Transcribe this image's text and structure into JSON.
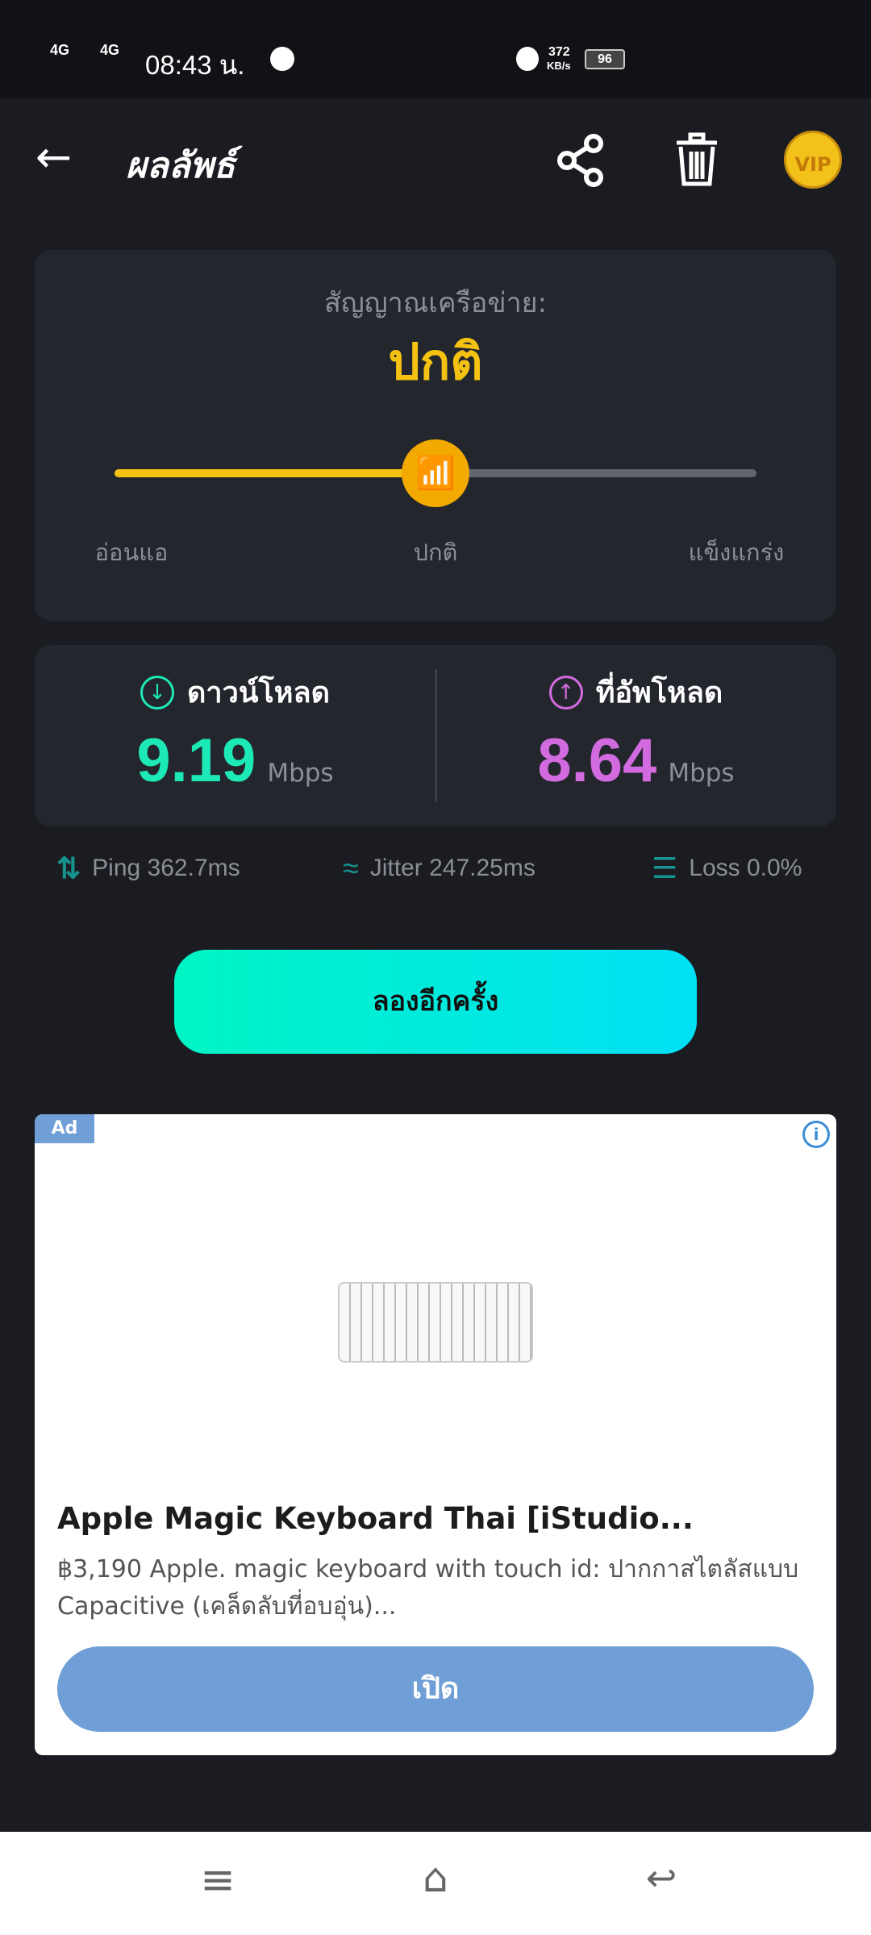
{
  "status_bar": {
    "network1": "4G",
    "network2": "4G",
    "time": "08:43 น.",
    "speed_value": "372",
    "speed_unit": "KB/s",
    "battery": "96"
  },
  "header": {
    "title": "ผลลัพธ์",
    "vip": "VIP"
  },
  "signal": {
    "label": "สัญญาณเครือข่าย:",
    "value": "ปกติ",
    "level_percent": 50,
    "scale": [
      "อ่อนแอ",
      "ปกติ",
      "แข็งแกร่ง"
    ],
    "accent": "#f5c211"
  },
  "speeds": {
    "download": {
      "label": "ดาวน์โหลด",
      "value": "9.19",
      "unit": "Mbps",
      "color": "#1de9b6"
    },
    "upload": {
      "label": "ที่อัพโหลด",
      "value": "8.64",
      "unit": "Mbps",
      "color": "#d36be0"
    }
  },
  "stats": {
    "ping": "Ping 362.7ms",
    "jitter": "Jitter 247.25ms",
    "loss": "Loss 0.0%"
  },
  "retry_button": "ลองอีกครั้ง",
  "ad": {
    "badge": "Ad",
    "title": "Apple Magic Keyboard Thai [iStudio...",
    "description": "฿3,190 Apple. magic keyboard with touch id: ปากกาสไตลัสแบบ Capacitive (เคล็ดลับที่อบอุ่น)...",
    "button": "เปิด",
    "button_color": "#6f9fd6"
  }
}
